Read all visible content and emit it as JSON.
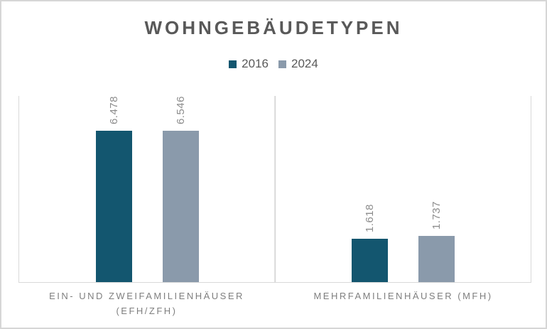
{
  "title": "WOHNGEBÄUDETYPEN",
  "colors": {
    "series_2016": "#13566F",
    "series_2024": "#8A9AAB",
    "title_text": "#595959",
    "legend_text": "#595959",
    "value_labels": "#8C8C8C",
    "category_labels": "#7F7F7F",
    "gridlines": "#D9D9D9",
    "frame_border": "#D6D6D6"
  },
  "chart_data": {
    "type": "bar",
    "title": "WOHNGEBÄUDETYPEN",
    "categories": [
      "EIN- UND ZWEIFAMILIENHÄUSER (EFH/ZFH)",
      "MEHRFAMILIENHÄUSER (MFH)"
    ],
    "category_lines": [
      [
        "EIN- UND ZWEIFAMILIENHÄUSER",
        "(EFH/ZFH)"
      ],
      [
        "MEHRFAMILIENHÄUSER (MFH)"
      ]
    ],
    "series": [
      {
        "name": "2016",
        "color": "#13566F",
        "values": [
          6478,
          1618
        ],
        "labels": [
          "6.478",
          "1.618"
        ]
      },
      {
        "name": "2024",
        "color": "#8A9AAB",
        "values": [
          6546,
          1737
        ],
        "labels": [
          "6.546",
          "1.737"
        ]
      }
    ],
    "xlabel": "",
    "ylabel": "",
    "ylim": [
      0,
      7000
    ],
    "grid": "vertical category separators only, no horizontal gridlines, no y-axis ticks",
    "legend_position": "top-center",
    "value_label_rotation": "vertical (reading bottom-to-top), above each bar"
  }
}
